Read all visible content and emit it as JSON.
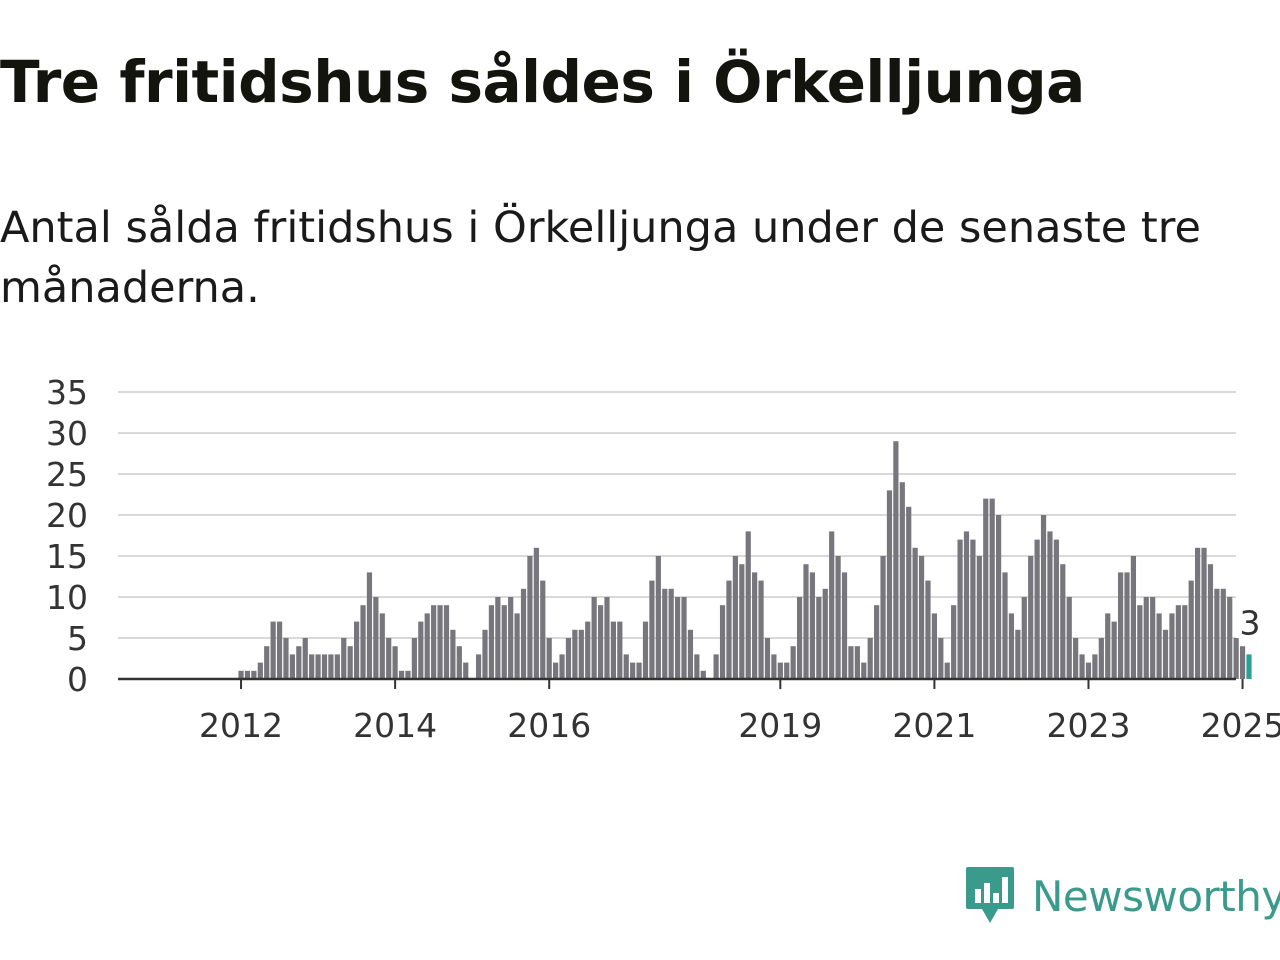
{
  "title": "Tre fritidshus såldes i Örkelljunga",
  "subtitle": "Antal sålda fritidshus i Örkelljunga under de senaste tre månaderna.",
  "brand": {
    "name": "Newsworthy",
    "icon": "newsworthy-logo-icon"
  },
  "colors": {
    "bar": "#77767d",
    "highlight": "#2aa095",
    "grid": "#d9d9d9",
    "axis": "#333333",
    "brand": "#3a9a8c"
  },
  "chart_data": {
    "type": "bar",
    "title": "",
    "xlabel": "",
    "ylabel": "",
    "x_start": "2011-01",
    "x_step": "month",
    "ylim": [
      0,
      35
    ],
    "yticks": [
      "0",
      "5",
      "10",
      "15",
      "20",
      "25",
      "30",
      "35"
    ],
    "xticks": [
      "2012",
      "2014",
      "2016",
      "2019",
      "2021",
      "2023",
      "2025"
    ],
    "grid": true,
    "legend": "none",
    "highlight_label": "3",
    "series": [
      {
        "values": [
          0,
          0,
          0,
          0,
          0,
          0,
          0,
          0,
          0,
          0,
          0,
          0,
          1,
          1,
          1,
          2,
          4,
          7,
          7,
          5,
          3,
          4,
          5,
          3,
          3,
          3,
          3,
          3,
          5,
          4,
          7,
          9,
          13,
          10,
          8,
          5,
          4,
          1,
          1,
          5,
          7,
          8,
          9,
          9,
          9,
          6,
          4,
          2,
          0,
          3,
          6,
          9,
          10,
          9,
          10,
          8,
          11,
          15,
          16,
          12,
          5,
          2,
          3,
          5,
          6,
          6,
          7,
          10,
          9,
          10,
          7,
          7,
          3,
          2,
          2,
          7,
          12,
          15,
          11,
          11,
          10,
          10,
          6,
          3,
          1,
          0,
          3,
          9,
          12,
          15,
          14,
          18,
          13,
          12,
          5,
          3,
          2,
          2,
          4,
          10,
          14,
          13,
          10,
          11,
          18,
          15,
          13,
          4,
          4,
          2,
          5,
          9,
          15,
          23,
          29,
          24,
          21,
          16,
          15,
          12,
          8,
          5,
          2,
          9,
          17,
          18,
          17,
          15,
          22,
          22,
          20,
          13,
          8,
          6,
          10,
          15,
          17,
          20,
          18,
          17,
          14,
          10,
          5,
          3,
          2,
          3,
          5,
          8,
          7,
          13,
          13,
          15,
          9,
          10,
          10,
          8,
          6,
          8,
          9,
          9,
          12,
          16,
          16,
          14,
          11,
          11,
          10,
          5,
          4,
          3
        ]
      }
    ]
  }
}
